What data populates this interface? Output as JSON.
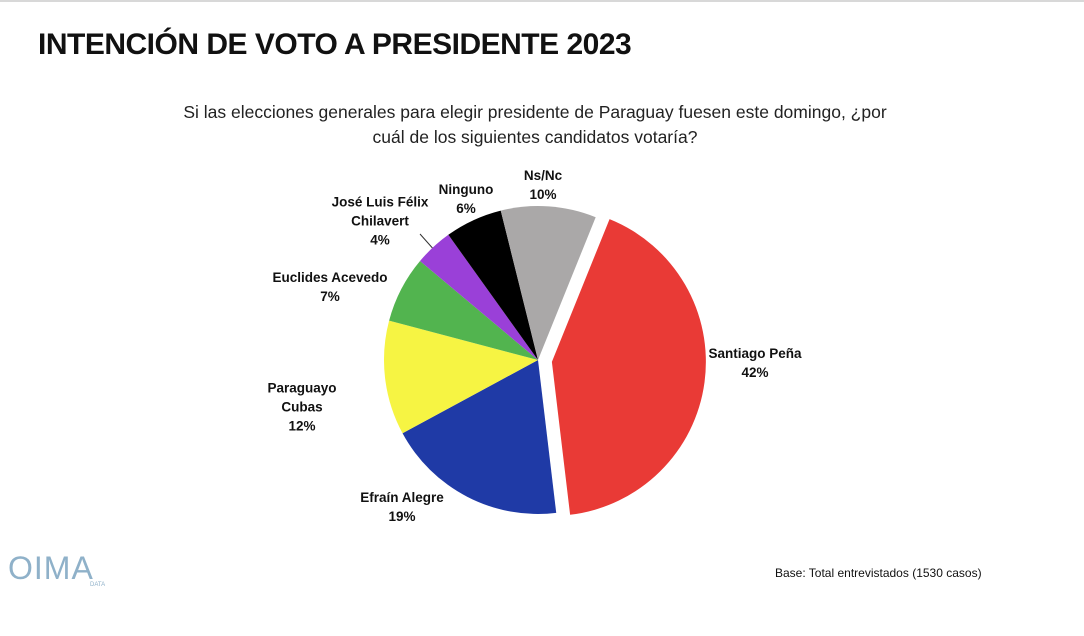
{
  "chart_data": {
    "type": "pie",
    "title": "INTENCIÓN DE VOTO A PRESIDENTE 2023",
    "subtitle": "Si las elecciones generales para elegir presidente de Paraguay fuesen este domingo, ¿por cuál de los siguientes candidatos votaría?",
    "categories": [
      "Santiago Peña",
      "Efraín Alegre",
      "Paraguayo Cubas",
      "Euclides Acevedo",
      "José Luis Félix Chilavert",
      "Ninguno",
      "Ns/Nc"
    ],
    "values": [
      42,
      19,
      12,
      7,
      4,
      6,
      10
    ],
    "value_labels": [
      "42%",
      "19%",
      "12%",
      "7%",
      "4%",
      "6%",
      "10%"
    ],
    "colors": [
      "#e93a36",
      "#1f3aa6",
      "#f6f443",
      "#52b44f",
      "#9a40d8",
      "#000000",
      "#aaa8a8"
    ],
    "explode": [
      true,
      false,
      false,
      false,
      false,
      false,
      false
    ],
    "note": "Base: Total entrevistados (1530 casos)",
    "logo": "OIMA",
    "logo_sub": "DATA"
  }
}
